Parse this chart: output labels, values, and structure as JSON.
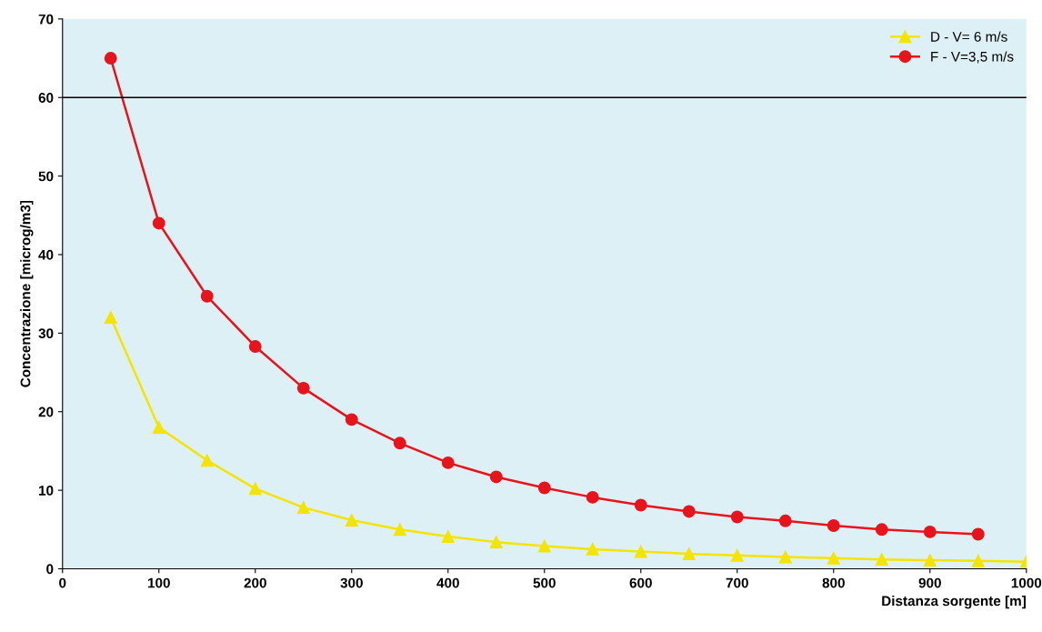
{
  "chart_data": {
    "type": "line",
    "xlabel": "Distanza sorgente [m]",
    "ylabel": "Concentrazione [microg/m3]",
    "xlim": [
      0,
      1000
    ],
    "xticks": [
      0,
      100,
      200,
      300,
      400,
      500,
      600,
      700,
      800,
      900,
      1000
    ],
    "ylim": [
      0,
      70
    ],
    "yticks": [
      0,
      10,
      20,
      30,
      40,
      50,
      60,
      70
    ],
    "grid": false,
    "legend": "top right",
    "series": [
      {
        "name": "D - V= 6 m/s",
        "color": "#f5e400",
        "marker": "triangle",
        "x": [
          50,
          100,
          150,
          200,
          250,
          300,
          350,
          400,
          450,
          500,
          550,
          600,
          650,
          700,
          750,
          800,
          850,
          900,
          950,
          1000
        ],
        "values": [
          32,
          18,
          13.8,
          10.2,
          7.8,
          6.2,
          5,
          4.1,
          3.4,
          2.9,
          2.5,
          2.2,
          1.9,
          1.7,
          1.5,
          1.35,
          1.2,
          1.1,
          1.0,
          0.9
        ]
      },
      {
        "name": "F - V=3,5 m/s",
        "color": "#e8141c",
        "marker": "circle",
        "x": [
          50,
          100,
          150,
          200,
          250,
          300,
          350,
          400,
          450,
          500,
          550,
          600,
          650,
          700,
          750,
          800,
          850,
          900,
          950
        ],
        "values": [
          65,
          44,
          34.7,
          28.3,
          23,
          19,
          16,
          13.5,
          11.7,
          10.3,
          9.1,
          8.1,
          7.3,
          6.6,
          6.1,
          5.5,
          5.0,
          4.7,
          4.4
        ]
      }
    ],
    "ref_lines": [
      {
        "axis": "y",
        "value": 60,
        "color": "#000000"
      }
    ]
  }
}
